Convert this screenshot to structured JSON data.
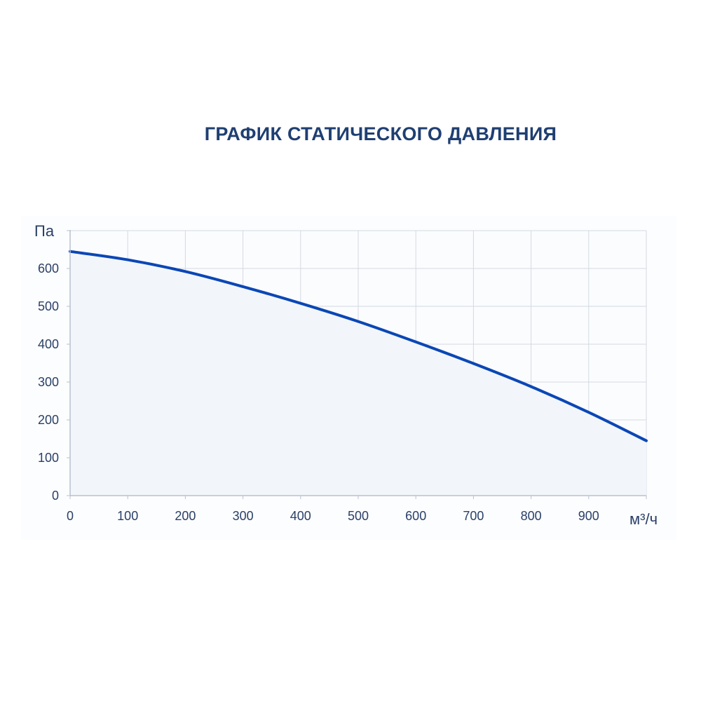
{
  "chart_data": {
    "type": "line",
    "title": "ГРАФИК СТАТИЧЕСКОГО ДАВЛЕНИЯ",
    "xlabel": "м³/ч",
    "ylabel": "Па",
    "xlim": [
      0,
      1000
    ],
    "ylim": [
      0,
      700
    ],
    "x_ticks": [
      0,
      100,
      200,
      300,
      400,
      500,
      600,
      700,
      800,
      900
    ],
    "y_ticks": [
      0,
      100,
      200,
      300,
      400,
      500,
      600
    ],
    "grid": true,
    "area_fill": true,
    "line_color": "#0b47b5",
    "fill_color": "#f2f6fb",
    "grid_color": "#d4d9e2",
    "text_color": "#2a3f66",
    "series": [
      {
        "x": [
          0,
          100,
          200,
          300,
          400,
          500,
          600,
          700,
          800,
          900,
          1000
        ],
        "values": [
          645,
          623,
          592,
          552,
          508,
          460,
          406,
          349,
          288,
          220,
          145
        ]
      }
    ]
  }
}
